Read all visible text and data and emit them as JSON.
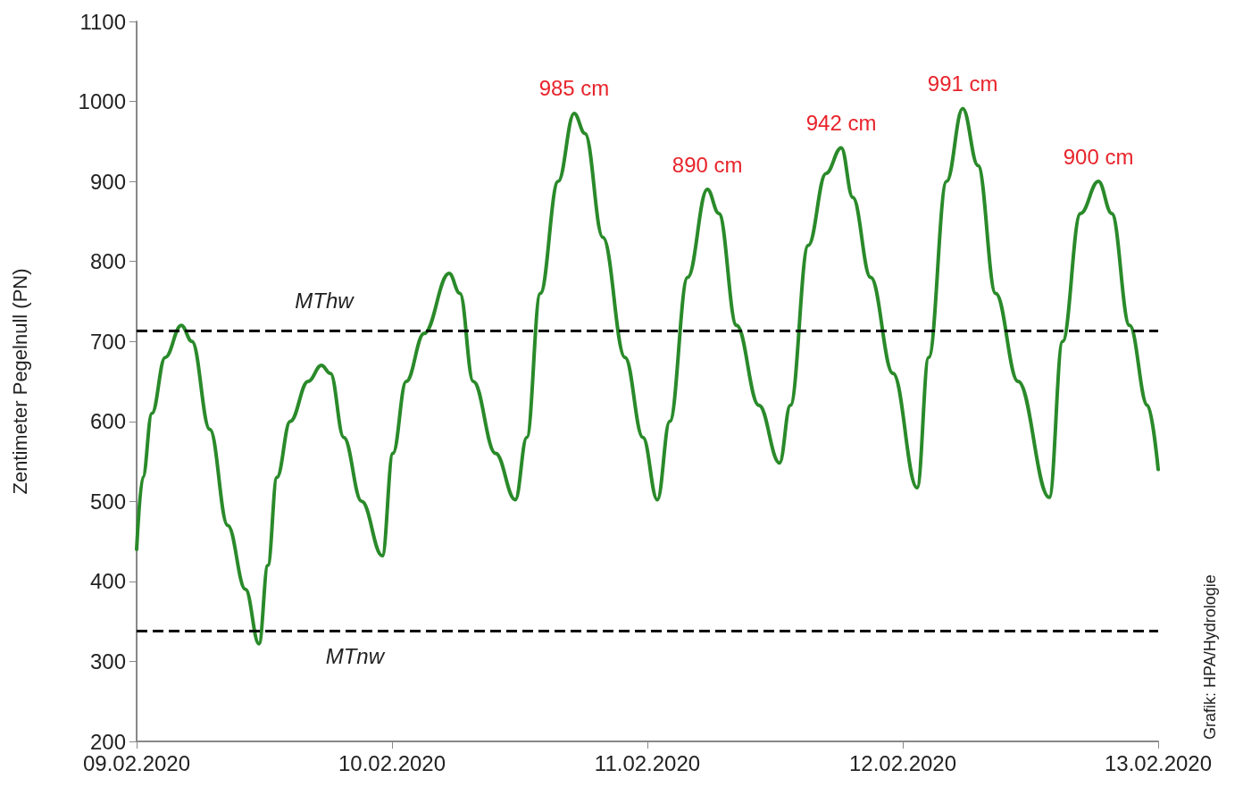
{
  "chart_data": {
    "type": "line",
    "ylabel": "Zentimeter Pegelnull (PN)",
    "annotations": [
      {
        "text": "985 cm",
        "x": "2020-02-10T17:07",
        "y": 985
      },
      {
        "text": "890 cm",
        "x": "2020-02-11T05:38",
        "y": 890
      },
      {
        "text": "942 cm",
        "x": "2020-02-11T18:13",
        "y": 942
      },
      {
        "text": "991 cm",
        "x": "2020-02-12T05:38",
        "y": 991
      },
      {
        "text": "900 cm",
        "x": "2020-02-12T18:23",
        "y": 900
      },
      "Grafik: HPA/Hydrologie"
    ],
    "series": [
      {
        "color": "#2a8a2a",
        "x": [
          "2020-02-09T00:00",
          "2020-02-09T00:35",
          "2020-02-09T01:26",
          "2020-02-09T02:41",
          "2020-02-09T04:12",
          "2020-02-09T05:12",
          "2020-02-09T06:53",
          "2020-02-09T08:34",
          "2020-02-09T10:14",
          "2020-02-09T11:30",
          "2020-02-09T12:20",
          "2020-02-09T13:11",
          "2020-02-09T14:26",
          "2020-02-09T16:07",
          "2020-02-09T17:22",
          "2020-02-09T18:13",
          "2020-02-09T19:28",
          "2020-02-09T21:09",
          "2020-02-09T23:05",
          "2020-02-10T00:05",
          "2020-02-10T01:20",
          "2020-02-10T03:01",
          "2020-02-10T05:22",
          "2020-02-10T06:23",
          "2020-02-10T07:38",
          "2020-02-10T09:44",
          "2020-02-10T11:35",
          "2020-02-10T12:40",
          "2020-02-10T13:56",
          "2020-02-10T15:37",
          "2020-02-10T17:07",
          "2020-02-10T18:08",
          "2020-02-10T19:49",
          "2020-02-10T21:54",
          "2020-02-10T23:35",
          "2020-02-11T00:56",
          "2020-02-11T02:06",
          "2020-02-11T03:47",
          "2020-02-11T05:38",
          "2020-02-11T06:43",
          "2020-02-11T08:23",
          "2020-02-11T10:29",
          "2020-02-11T12:25",
          "2020-02-11T13:26",
          "2020-02-11T15:07",
          "2020-02-11T16:47",
          "2020-02-11T18:13",
          "2020-02-11T19:18",
          "2020-02-11T20:59",
          "2020-02-11T23:05",
          "2020-02-12T01:21",
          "2020-02-12T02:26",
          "2020-02-12T04:07",
          "2020-02-12T05:38",
          "2020-02-12T07:04",
          "2020-02-12T08:44",
          "2020-02-12T10:50",
          "2020-02-12T13:46",
          "2020-02-12T15:01",
          "2020-02-12T16:42",
          "2020-02-12T18:23",
          "2020-02-12T19:38",
          "2020-02-12T21:19",
          "2020-02-12T23:00",
          "2020-02-13T00:00"
        ],
        "values": [
          440,
          530,
          610,
          680,
          720,
          700,
          590,
          470,
          390,
          322,
          420,
          530,
          600,
          650,
          670,
          660,
          580,
          500,
          432,
          560,
          650,
          710,
          785,
          760,
          650,
          560,
          502,
          580,
          760,
          900,
          985,
          960,
          830,
          680,
          580,
          502,
          600,
          780,
          890,
          860,
          720,
          620,
          548,
          620,
          820,
          910,
          942,
          880,
          780,
          660,
          517,
          680,
          900,
          991,
          920,
          760,
          650,
          505,
          700,
          860,
          900,
          860,
          720,
          620,
          540
        ]
      }
    ],
    "xlim": [
      "2020-02-09",
      "2020-02-13"
    ],
    "xticks": [
      {
        "value": "2020-02-09",
        "label": "09.02.2020"
      },
      {
        "value": "2020-02-10",
        "label": "10.02.2020"
      },
      {
        "value": "2020-02-11",
        "label": "11.02.2020"
      },
      {
        "value": "2020-02-12",
        "label": "12.02.2020"
      },
      {
        "value": "2020-02-13",
        "label": "13.02.2020"
      }
    ],
    "ylim": [
      200,
      1100
    ],
    "yticks": [
      200,
      300,
      400,
      500,
      600,
      700,
      800,
      900,
      1000,
      1100
    ],
    "ref_lines": [
      {
        "axis": "y",
        "value": 713,
        "label": "MThw",
        "color": "#000000",
        "line_style": "dashed"
      },
      {
        "axis": "y",
        "value": 338,
        "label": "MTnw",
        "color": "#000000",
        "line_style": "dashed"
      }
    ],
    "grid": false,
    "marker": "none",
    "line_style": "solid"
  }
}
